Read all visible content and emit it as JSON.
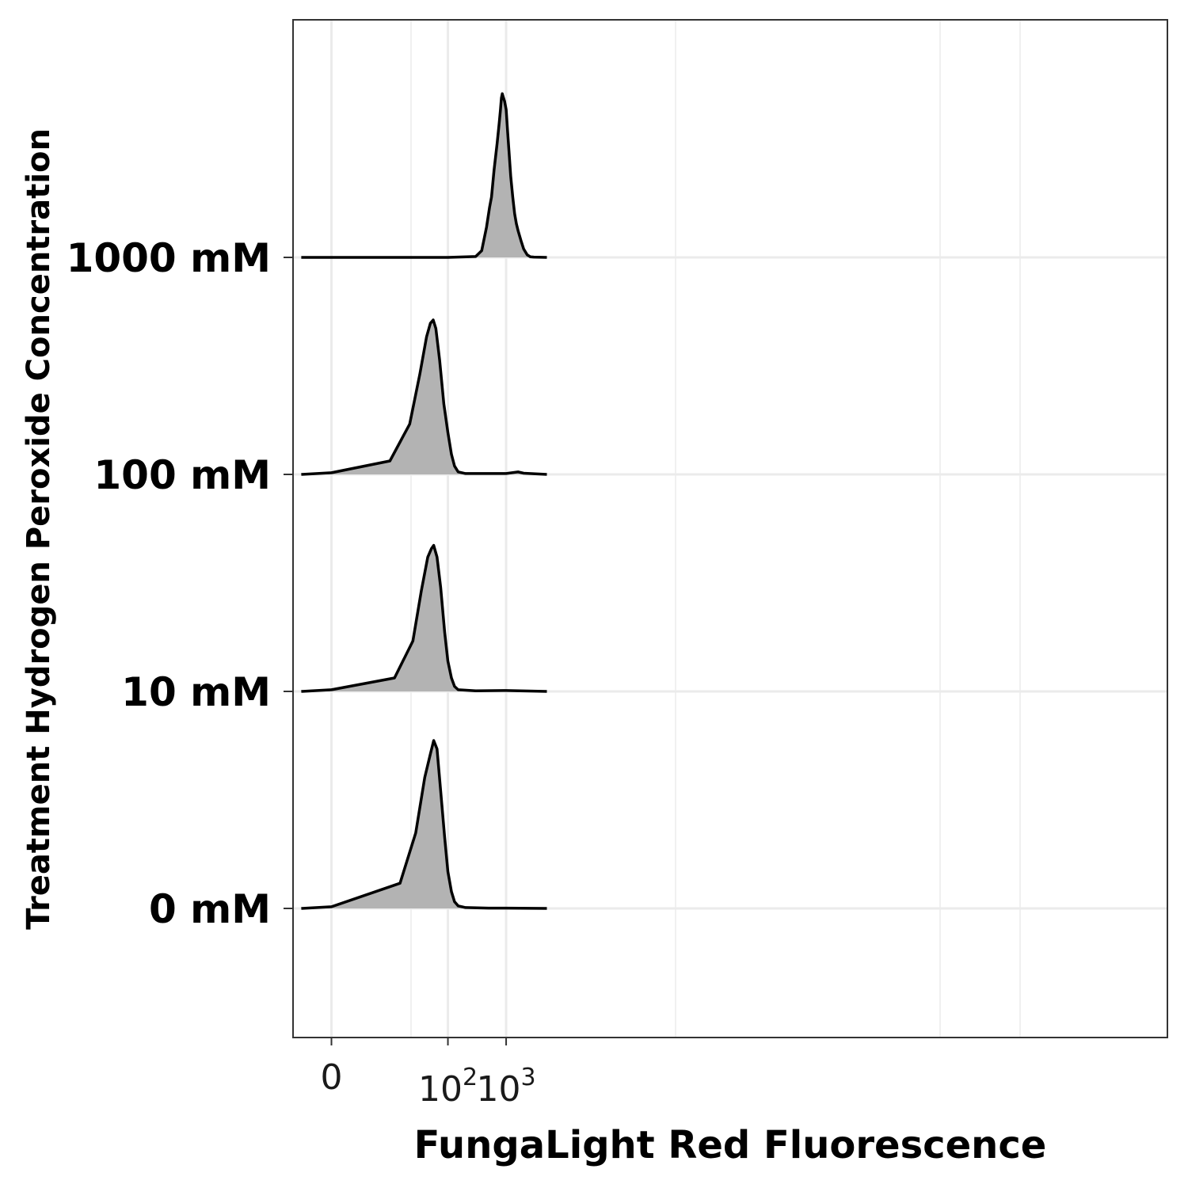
{
  "chart_data": {
    "type": "ridgeline",
    "title": "",
    "xlabel": "FungaLight Red Fluorescence",
    "ylabel": "Treatment Hydrogen Peroxide Concentration",
    "x_scale": "pseudo-log",
    "x_ticks": [
      {
        "value": 0,
        "base": "0",
        "exp": ""
      },
      {
        "value": 100,
        "base": "10",
        "exp": "2"
      },
      {
        "value": 1000,
        "base": "10",
        "exp": "3"
      }
    ],
    "categories": [
      "0 mM",
      "10 mM",
      "100 mM",
      "1000 mM"
    ],
    "fill_color": "#b3b3b3",
    "line_color": "#000000",
    "grid": true,
    "series": [
      {
        "name": "0 mM",
        "density": [
          [
            -3,
            0
          ],
          [
            0,
            0.01
          ],
          [
            15,
            0.15
          ],
          [
            28,
            0.45
          ],
          [
            40,
            0.78
          ],
          [
            50,
            0.92
          ],
          [
            57,
            1.0
          ],
          [
            65,
            0.95
          ],
          [
            75,
            0.7
          ],
          [
            88,
            0.42
          ],
          [
            100,
            0.22
          ],
          [
            115,
            0.1
          ],
          [
            130,
            0.04
          ],
          [
            150,
            0.015
          ],
          [
            200,
            0.005
          ],
          [
            500,
            0.002
          ],
          [
            1000,
            0.002
          ],
          [
            5000,
            0
          ]
        ]
      },
      {
        "name": "10 mM",
        "density": [
          [
            -3,
            0
          ],
          [
            0,
            0.01
          ],
          [
            12,
            0.08
          ],
          [
            25,
            0.3
          ],
          [
            35,
            0.6
          ],
          [
            45,
            0.8
          ],
          [
            52,
            0.85
          ],
          [
            57,
            0.87
          ],
          [
            65,
            0.8
          ],
          [
            75,
            0.62
          ],
          [
            88,
            0.35
          ],
          [
            100,
            0.18
          ],
          [
            115,
            0.08
          ],
          [
            130,
            0.03
          ],
          [
            150,
            0.01
          ],
          [
            300,
            0.004
          ],
          [
            1000,
            0.005
          ],
          [
            5000,
            0
          ]
        ]
      },
      {
        "name": "100 mM",
        "density": [
          [
            -3,
            0
          ],
          [
            0,
            0.01
          ],
          [
            10,
            0.08
          ],
          [
            22,
            0.3
          ],
          [
            33,
            0.6
          ],
          [
            43,
            0.82
          ],
          [
            50,
            0.9
          ],
          [
            56,
            0.92
          ],
          [
            62,
            0.87
          ],
          [
            72,
            0.68
          ],
          [
            85,
            0.42
          ],
          [
            100,
            0.25
          ],
          [
            115,
            0.12
          ],
          [
            130,
            0.05
          ],
          [
            150,
            0.015
          ],
          [
            200,
            0.005
          ],
          [
            1000,
            0.005
          ],
          [
            1600,
            0.015
          ],
          [
            2000,
            0.007
          ],
          [
            5000,
            0
          ]
        ]
      },
      {
        "name": "1000 mM",
        "density": [
          [
            -3,
            0
          ],
          [
            100,
            0.0
          ],
          [
            300,
            0.005
          ],
          [
            380,
            0.04
          ],
          [
            460,
            0.18
          ],
          [
            520,
            0.3
          ],
          [
            560,
            0.36
          ],
          [
            620,
            0.52
          ],
          [
            700,
            0.68
          ],
          [
            760,
            0.8
          ],
          [
            800,
            0.88
          ],
          [
            830,
            0.95
          ],
          [
            860,
            0.975
          ],
          [
            900,
            0.95
          ],
          [
            940,
            0.93
          ],
          [
            1000,
            0.88
          ],
          [
            1060,
            0.75
          ],
          [
            1120,
            0.63
          ],
          [
            1200,
            0.48
          ],
          [
            1300,
            0.36
          ],
          [
            1400,
            0.26
          ],
          [
            1500,
            0.2
          ],
          [
            1600,
            0.16
          ],
          [
            1800,
            0.1
          ],
          [
            2000,
            0.05
          ],
          [
            2300,
            0.015
          ],
          [
            2600,
            0.004
          ],
          [
            3000,
            0.002
          ],
          [
            5000,
            0
          ]
        ]
      }
    ]
  }
}
